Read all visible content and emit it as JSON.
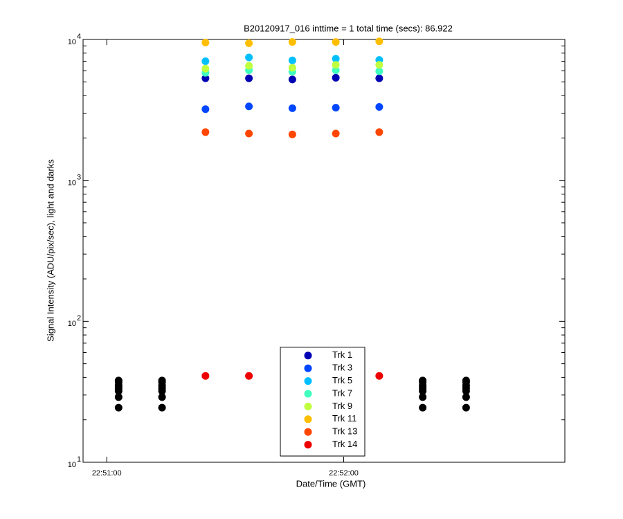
{
  "chart_data": {
    "type": "scatter",
    "title": "B20120917_016 inttime = 1 total time (secs): 86.922",
    "x_label": "Date/Time (GMT)",
    "y_label": "Signal Intensity (ADU/pix/sec), light and darks",
    "xlim": [
      "22:50:54",
      "22:52:56"
    ],
    "xticks": [
      "22:51:00",
      "22:52:00"
    ],
    "ylim": [
      10,
      10000
    ],
    "log_y": true,
    "yticks": [
      {
        "value": 10,
        "label": "10",
        "exponent": "1"
      },
      {
        "value": 100,
        "label": "10",
        "exponent": "2"
      },
      {
        "value": 1000,
        "label": "10",
        "exponent": "3"
      },
      {
        "value": 10000,
        "label": "10",
        "exponent": "4"
      }
    ],
    "legend": "bottom",
    "series": [
      {
        "name": "Trk 1",
        "color": "#0000b4",
        "x": [
          "22:51:25",
          "22:51:36",
          "22:51:47",
          "22:51:58",
          "22:52:09"
        ],
        "values": [
          5300,
          5300,
          5200,
          5350,
          5300
        ]
      },
      {
        "name": "Trk 3",
        "color": "#0046ff",
        "x": [
          "22:51:25",
          "22:51:36",
          "22:51:47",
          "22:51:58",
          "22:52:09"
        ],
        "values": [
          3200,
          3350,
          3250,
          3280,
          3320
        ]
      },
      {
        "name": "Trk 5",
        "color": "#00bfff",
        "x": [
          "22:51:25",
          "22:51:36",
          "22:51:47",
          "22:51:58",
          "22:52:09"
        ],
        "values": [
          7000,
          7450,
          7100,
          7300,
          7150
        ]
      },
      {
        "name": "Trk 7",
        "color": "#40ffbf",
        "x": [
          "22:51:25",
          "22:51:36",
          "22:51:47",
          "22:51:58",
          "22:52:09"
        ],
        "values": [
          5800,
          6050,
          5900,
          6050,
          5950
        ]
      },
      {
        "name": "Trk 9",
        "color": "#bfff40",
        "x": [
          "22:51:25",
          "22:51:36",
          "22:51:47",
          "22:51:58",
          "22:52:09"
        ],
        "values": [
          6200,
          6500,
          6300,
          6600,
          6600
        ]
      },
      {
        "name": "Trk 11",
        "color": "#ffbf00",
        "x": [
          "22:51:25",
          "22:51:36",
          "22:51:47",
          "22:51:58",
          "22:52:09"
        ],
        "values": [
          9500,
          9400,
          9600,
          9600,
          9700
        ]
      },
      {
        "name": "Trk 13",
        "color": "#ff4600",
        "x": [
          "22:51:25",
          "22:51:36",
          "22:51:47",
          "22:51:58",
          "22:52:09"
        ],
        "values": [
          2200,
          2150,
          2120,
          2150,
          2200
        ]
      },
      {
        "name": "Trk 14",
        "color": "#ee0000",
        "x": [
          "22:51:25",
          "22:51:36",
          "22:51:47",
          "22:51:58",
          "22:52:09"
        ],
        "values": [
          41,
          41,
          null,
          null,
          41
        ]
      },
      {
        "color": "#000000",
        "x": [
          "22:51:03",
          "22:51:03",
          "22:51:03",
          "22:51:03",
          "22:51:03",
          "22:51:03",
          "22:51:03",
          "22:51:14",
          "22:51:14",
          "22:51:14",
          "22:51:14",
          "22:51:14",
          "22:51:14",
          "22:51:14",
          "22:52:20",
          "22:52:20",
          "22:52:20",
          "22:52:20",
          "22:52:20",
          "22:52:20",
          "22:52:20",
          "22:52:31",
          "22:52:31",
          "22:52:31",
          "22:52:31",
          "22:52:31",
          "22:52:31",
          "22:52:31"
        ],
        "values": [
          38,
          37,
          35,
          33.5,
          32,
          29,
          24.4,
          38,
          37,
          35,
          33.5,
          32,
          29,
          24.4,
          38,
          37,
          35,
          33.5,
          32,
          29,
          24.4,
          38,
          37,
          35,
          33.5,
          32,
          29,
          24.4
        ]
      }
    ]
  }
}
